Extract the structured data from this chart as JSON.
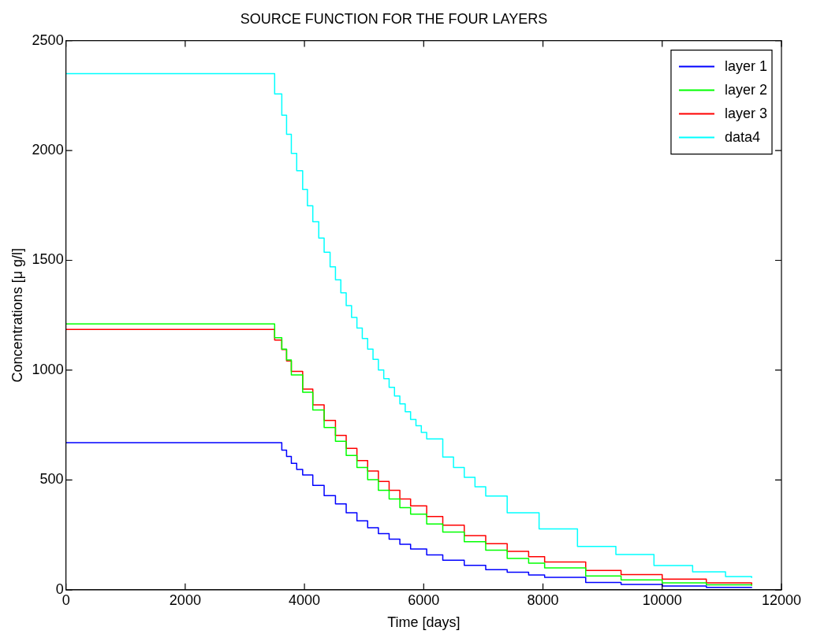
{
  "chart_data": {
    "type": "step",
    "title": "SOURCE FUNCTION FOR THE FOUR LAYERS",
    "xlabel": "Time [days]",
    "ylabel": "Concentrations [μ g/l]",
    "xlim": [
      0,
      12000
    ],
    "xticks": [
      0,
      2000,
      4000,
      6000,
      8000,
      10000,
      12000
    ],
    "ylim": [
      0,
      2500
    ],
    "yticks": [
      0,
      500,
      1000,
      1500,
      2000,
      2500
    ],
    "legend": "top right",
    "line_style": "solid",
    "marker": "none",
    "series": [
      {
        "name": "layer 1",
        "color": "#0000ff",
        "x": [
          0,
          3620,
          3700,
          3780,
          3870,
          3970,
          4140,
          4330,
          4520,
          4700,
          4880,
          5060,
          5240,
          5420,
          5600,
          5780,
          6050,
          6320,
          6680,
          7040,
          7400,
          7760,
          8028,
          8717,
          9310,
          10000,
          10740,
          11500
        ],
        "values": [
          670,
          636,
          607,
          576,
          548,
          523,
          475,
          429,
          391,
          351,
          314,
          283,
          256,
          231,
          207,
          186,
          159,
          135,
          111,
          92,
          80,
          67,
          57,
          33,
          24,
          17,
          11,
          8
        ]
      },
      {
        "name": "layer 2",
        "color": "#00ff00",
        "x": [
          0,
          3500,
          3620,
          3700,
          3780,
          3970,
          4140,
          4330,
          4520,
          4700,
          4880,
          5060,
          5240,
          5420,
          5600,
          5780,
          6050,
          6320,
          6680,
          7040,
          7400,
          7760,
          8028,
          8717,
          9310,
          10000,
          10740,
          11500
        ],
        "values": [
          1210,
          1148,
          1096,
          1046,
          978,
          899,
          819,
          739,
          676,
          612,
          557,
          501,
          453,
          413,
          374,
          344,
          300,
          263,
          219,
          180,
          143,
          121,
          100,
          63,
          45,
          32,
          23,
          18
        ]
      },
      {
        "name": "layer 3",
        "color": "#ff0000",
        "x": [
          0,
          3500,
          3620,
          3700,
          3780,
          3970,
          4140,
          4330,
          4520,
          4700,
          4880,
          5060,
          5240,
          5420,
          5600,
          5780,
          6050,
          6320,
          6680,
          7040,
          7400,
          7760,
          8028,
          8717,
          9310,
          10000,
          10740,
          11500
        ],
        "values": [
          1185,
          1137,
          1094,
          1042,
          994,
          914,
          842,
          771,
          703,
          644,
          588,
          541,
          493,
          453,
          413,
          382,
          334,
          294,
          247,
          210,
          175,
          151,
          127,
          88,
          69,
          49,
          32,
          23
        ]
      },
      {
        "name": "data4",
        "color": "#00ffff",
        "x": [
          0,
          3500,
          3620,
          3700,
          3780,
          3870,
          3970,
          4050,
          4140,
          4240,
          4330,
          4430,
          4520,
          4610,
          4700,
          4790,
          4880,
          4970,
          5060,
          5150,
          5240,
          5330,
          5420,
          5510,
          5600,
          5690,
          5780,
          5870,
          5960,
          6050,
          6320,
          6500,
          6680,
          6860,
          7040,
          7400,
          7935,
          8579,
          9223,
          9862,
          10510,
          11062,
          11500
        ],
        "values": [
          2350,
          2257,
          2161,
          2074,
          1987,
          1908,
          1823,
          1748,
          1676,
          1601,
          1537,
          1470,
          1411,
          1352,
          1294,
          1240,
          1192,
          1144,
          1096,
          1049,
          1001,
          961,
          922,
          882,
          846,
          811,
          776,
          747,
          716,
          687,
          604,
          557,
          512,
          469,
          427,
          351,
          277,
          197,
          161,
          110,
          82,
          60,
          54
        ]
      }
    ]
  }
}
